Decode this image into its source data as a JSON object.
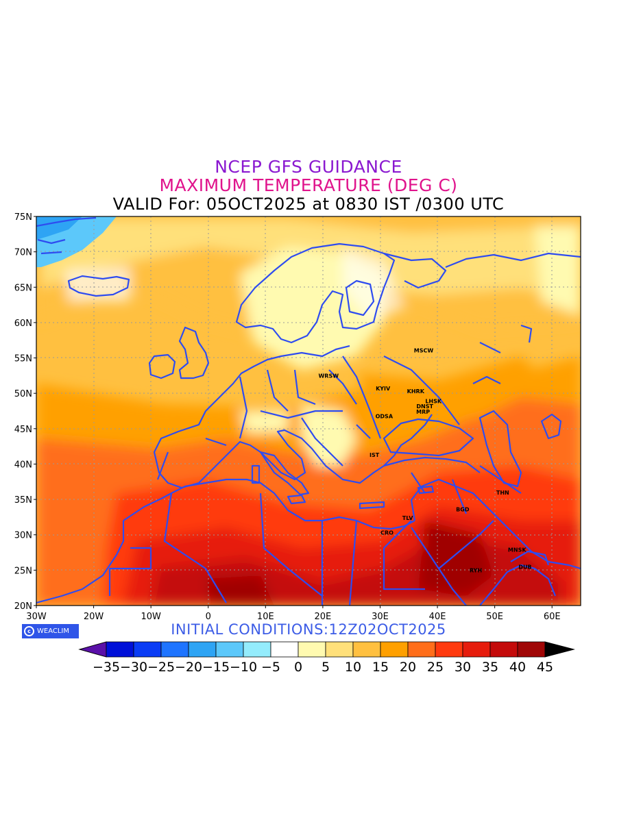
{
  "title": {
    "line1": "NCEP GFS GUIDANCE",
    "line2": "MAXIMUM TEMPERATURE (DEG C)",
    "line3": "VALID For: 05OCT2025 at 0830 IST /0300 UTC",
    "line1_color": "#8a18d0",
    "line2_color": "#e0138c",
    "line3_color": "#000000"
  },
  "map": {
    "lat_labels": [
      "75N",
      "70N",
      "65N",
      "60N",
      "55N",
      "50N",
      "45N",
      "40N",
      "35N",
      "30N",
      "25N",
      "20N"
    ],
    "lon_labels": [
      "30W",
      "20W",
      "10W",
      "0",
      "10E",
      "20E",
      "30E",
      "40E",
      "50E",
      "60E"
    ],
    "extent": {
      "lon_min": -30,
      "lon_max": 65,
      "lat_min": 20,
      "lat_max": 75
    },
    "coast_color": "#2e4cf0",
    "cities": [
      {
        "name": "MSCW",
        "lon": 37.6,
        "lat": 55.8
      },
      {
        "name": "WRSW",
        "lon": 21.0,
        "lat": 52.2
      },
      {
        "name": "KYIV",
        "lon": 30.5,
        "lat": 50.4
      },
      {
        "name": "KHRK",
        "lon": 36.2,
        "lat": 50.0
      },
      {
        "name": "LHSK",
        "lon": 39.3,
        "lat": 48.6
      },
      {
        "name": "DNST",
        "lon": 37.8,
        "lat": 47.9
      },
      {
        "name": "MRP",
        "lon": 37.5,
        "lat": 47.1
      },
      {
        "name": "ODSA",
        "lon": 30.7,
        "lat": 46.5
      },
      {
        "name": "IST",
        "lon": 29.0,
        "lat": 41.0
      },
      {
        "name": "THN",
        "lon": 51.4,
        "lat": 35.7
      },
      {
        "name": "BGD",
        "lon": 44.4,
        "lat": 33.3
      },
      {
        "name": "TLV",
        "lon": 34.8,
        "lat": 32.1
      },
      {
        "name": "CRO",
        "lon": 31.2,
        "lat": 30.0
      },
      {
        "name": "MNSK",
        "lon": 53.9,
        "lat": 27.6
      },
      {
        "name": "DUB",
        "lon": 55.3,
        "lat": 25.2
      },
      {
        "name": "RYH",
        "lon": 46.7,
        "lat": 24.7
      }
    ]
  },
  "logo": {
    "text": "WEACLIM",
    "bg": "#2f55e8"
  },
  "initial_conditions": {
    "text": "INITIAL  CONDITIONS:12Z02OCT2025",
    "color": "#3c5ce6"
  },
  "colorbar": {
    "labels": [
      "-35",
      "-30",
      "-25",
      "-20",
      "-15",
      "-10",
      "-5",
      "0",
      "5",
      "10",
      "15",
      "20",
      "25",
      "30",
      "35",
      "40",
      "45"
    ],
    "under_color": "#5a10a8",
    "over_color": "#000000",
    "colors": [
      "#0010d8",
      "#0a3cf5",
      "#1e74ff",
      "#2ea4f4",
      "#5cc8fa",
      "#94ecfc",
      "#ffffff",
      "#fffab0",
      "#ffe07a",
      "#ffc040",
      "#ffa000",
      "#ff6e1a",
      "#ff3a0e",
      "#e61c0c",
      "#c40a0a",
      "#a00606"
    ]
  }
}
